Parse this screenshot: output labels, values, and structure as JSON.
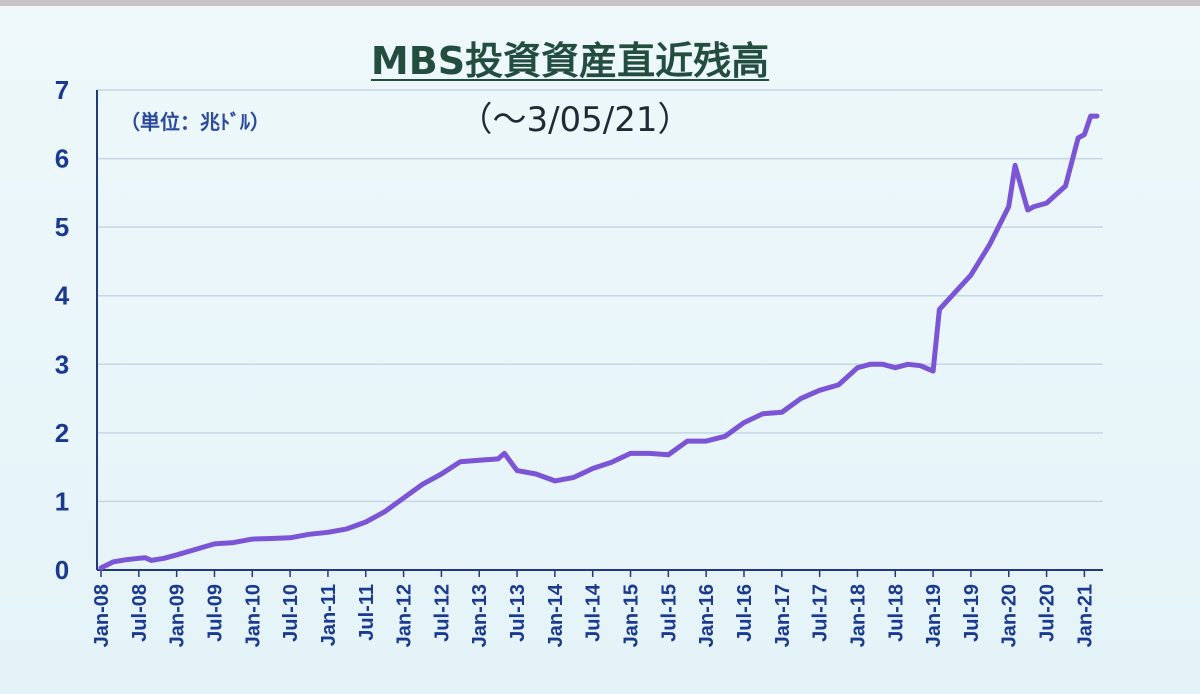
{
  "chart_data": {
    "type": "line",
    "title": "MBS投資資産直近残高",
    "subtitle": "（～3/05/21）",
    "unit_label": "（単位：兆ﾄﾞﾙ）",
    "xlabel": "",
    "ylabel": "",
    "ylim": [
      0,
      7
    ],
    "yticks": [
      "0",
      "1",
      "2",
      "3",
      "4",
      "5",
      "6",
      "7"
    ],
    "xticks": [
      "Jan-08",
      "Jul-08",
      "Jan-09",
      "Jul-09",
      "Jan-10",
      "Jul-10",
      "Jan-11",
      "Jul-11",
      "Jan-12",
      "Jul-12",
      "Jan-13",
      "Jul-13",
      "Jan-14",
      "Jul-14",
      "Jan-15",
      "Jul-15",
      "Jan-16",
      "Jul-16",
      "Jan-17",
      "Jul-17",
      "Jan-18",
      "Jul-18",
      "Jan-19",
      "Jul-19",
      "Jan-20",
      "Jul-20",
      "Jan-21"
    ],
    "grid": true,
    "line_color": "#7b55d6",
    "series": [
      {
        "x": [
          "2008-01",
          "2008-03",
          "2008-05",
          "2008-07",
          "2008-08",
          "2008-09",
          "2008-11",
          "2009-01",
          "2009-04",
          "2009-07",
          "2009-10",
          "2010-01",
          "2010-04",
          "2010-07",
          "2010-10",
          "2011-01",
          "2011-04",
          "2011-07",
          "2011-10",
          "2012-01",
          "2012-04",
          "2012-07",
          "2012-10",
          "2013-01",
          "2013-04",
          "2013-05",
          "2013-07",
          "2013-10",
          "2014-01",
          "2014-04",
          "2014-07",
          "2014-10",
          "2015-01",
          "2015-04",
          "2015-07",
          "2015-10",
          "2016-01",
          "2016-04",
          "2016-07",
          "2016-10",
          "2017-01",
          "2017-04",
          "2017-07",
          "2017-10",
          "2018-01",
          "2018-03",
          "2018-05",
          "2018-07",
          "2018-09",
          "2018-11",
          "2019-01",
          "2019-02",
          "2019-04",
          "2019-07",
          "2019-10",
          "2020-01",
          "2020-02",
          "2020-04",
          "2020-05",
          "2020-07",
          "2020-10",
          "2020-12",
          "2021-01",
          "2021-02",
          "2021-03"
        ],
        "values": [
          0.03,
          0.12,
          0.15,
          0.17,
          0.18,
          0.14,
          0.17,
          0.22,
          0.3,
          0.38,
          0.4,
          0.45,
          0.46,
          0.47,
          0.52,
          0.55,
          0.6,
          0.7,
          0.85,
          1.05,
          1.25,
          1.4,
          1.58,
          1.6,
          1.62,
          1.7,
          1.45,
          1.4,
          1.3,
          1.35,
          1.48,
          1.57,
          1.7,
          1.7,
          1.68,
          1.88,
          1.88,
          1.95,
          2.15,
          2.28,
          2.3,
          2.5,
          2.62,
          2.7,
          2.95,
          3.0,
          3.0,
          2.95,
          3.0,
          2.98,
          2.9,
          3.8,
          4.0,
          4.3,
          4.75,
          5.3,
          5.9,
          5.25,
          5.3,
          5.35,
          5.6,
          6.3,
          6.35,
          6.62,
          6.62
        ]
      }
    ]
  }
}
